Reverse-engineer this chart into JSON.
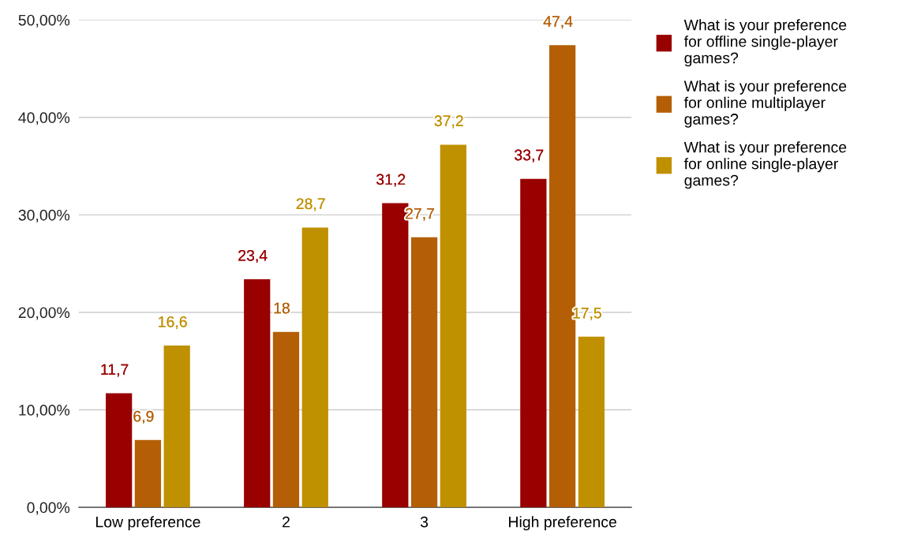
{
  "chart_data": {
    "type": "bar",
    "categories": [
      "Low preference",
      "2",
      "3",
      "High preference"
    ],
    "series": [
      {
        "name": "What is your preference for offline single-player games?",
        "color": "#990000",
        "values": [
          11.7,
          23.4,
          31.2,
          33.7
        ],
        "value_labels": [
          "11,7",
          "23,4",
          "31,2",
          "33,7"
        ]
      },
      {
        "name": "What is your preference for online multiplayer games?",
        "color": "#b45f06",
        "values": [
          6.9,
          18,
          27.7,
          47.4
        ],
        "value_labels": [
          "6,9",
          "18",
          "27,7",
          "47,4"
        ]
      },
      {
        "name": "What is your preference for online single-player games?",
        "color": "#bf9000",
        "values": [
          16.6,
          28.7,
          37.2,
          17.5
        ],
        "value_labels": [
          "16,6",
          "28,7",
          "37,2",
          "17,5"
        ]
      }
    ],
    "ylim": [
      0,
      50
    ],
    "yticks": [
      {
        "value": 0,
        "label": "0,00%"
      },
      {
        "value": 10,
        "label": "10,00%"
      },
      {
        "value": 20,
        "label": "20,00%"
      },
      {
        "value": 30,
        "label": "30,00%"
      },
      {
        "value": 40,
        "label": "40,00%"
      },
      {
        "value": 50,
        "label": "50,00%"
      }
    ],
    "grid": "y",
    "legend": "top right"
  }
}
